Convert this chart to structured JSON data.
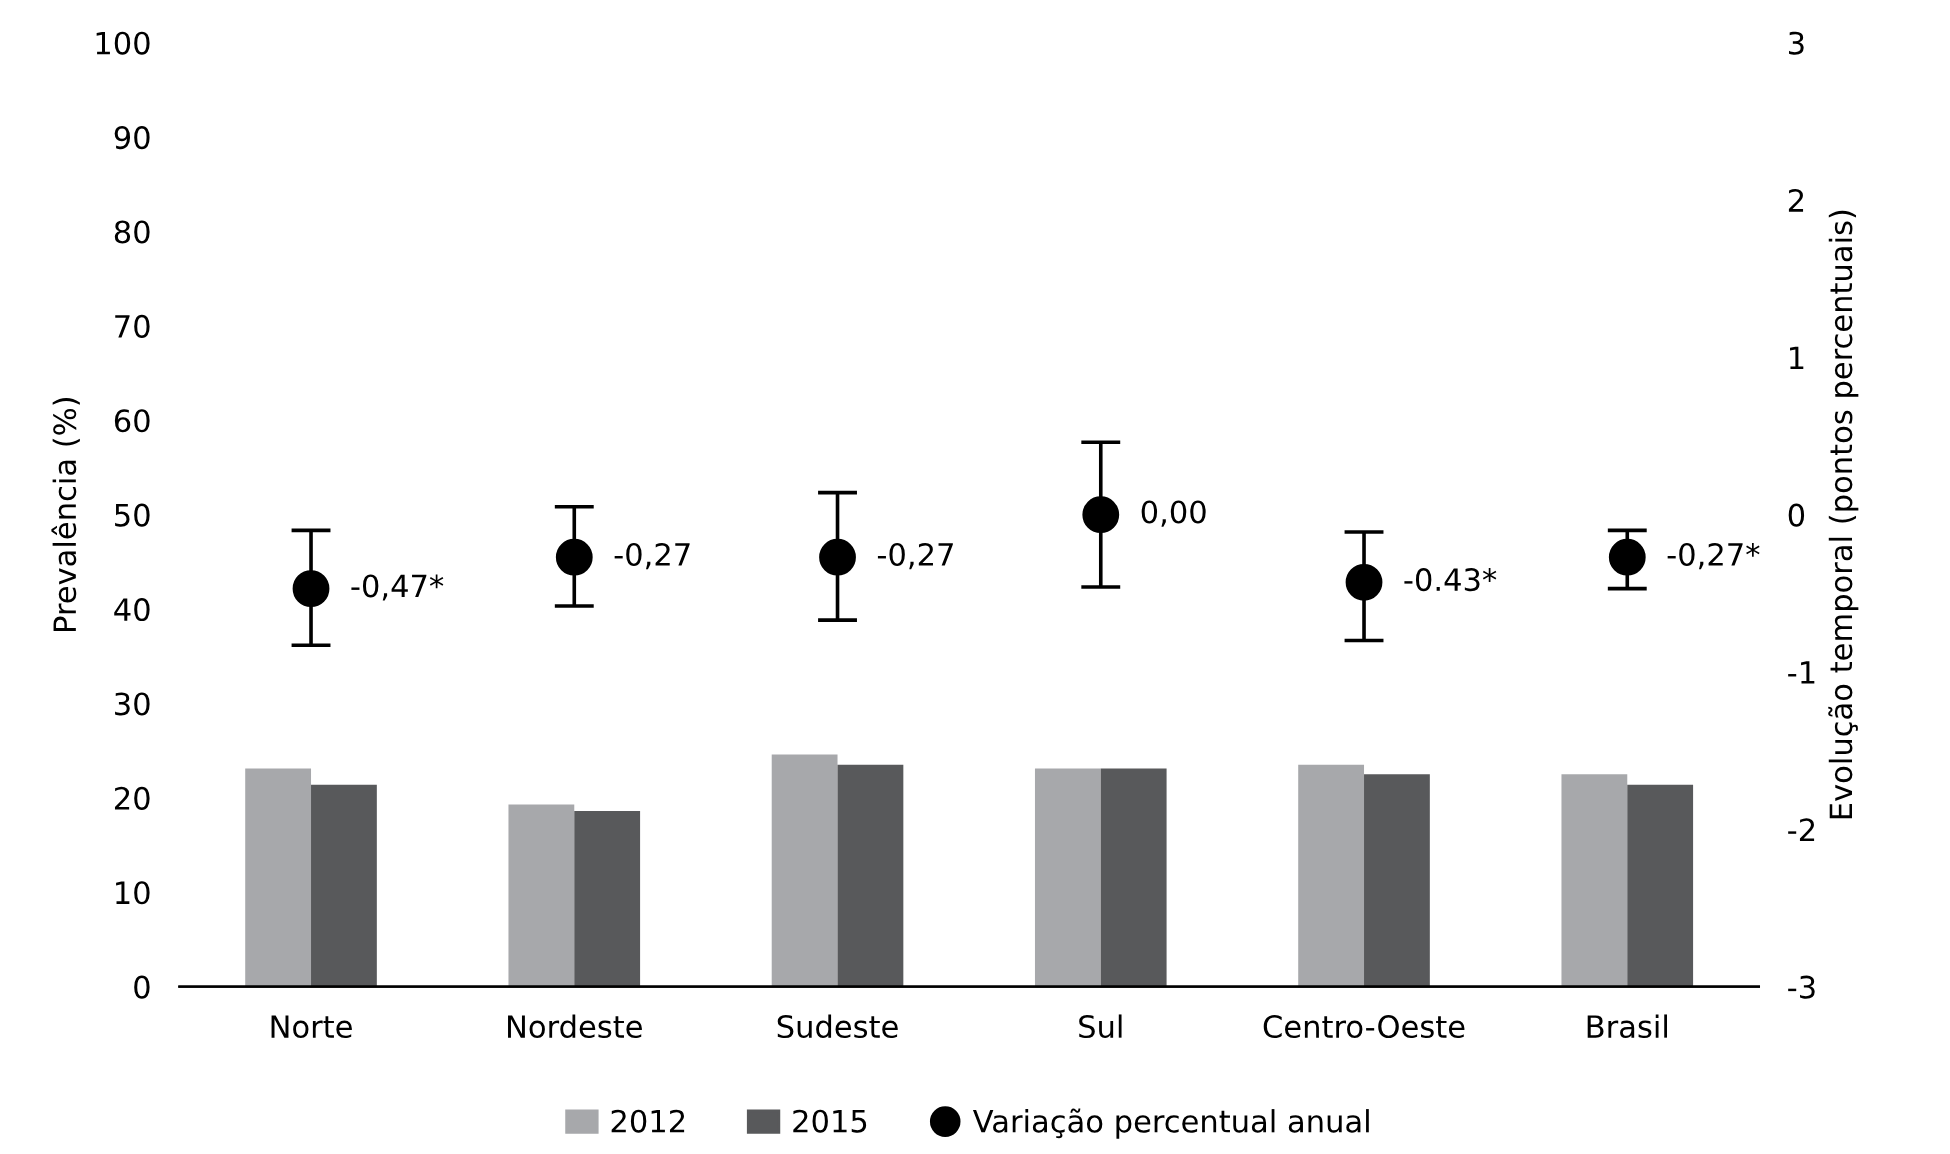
{
  "chart_data": {
    "type": "bar",
    "ylabel": "Prevalência (%)",
    "y2label": "Evolução temporal (pontos percentuais)",
    "categories": [
      "Norte",
      "Nordeste",
      "Sudeste",
      "Sul",
      "Centro-Oeste",
      "Brasil"
    ],
    "series": [
      {
        "name": "2012",
        "color": "#a7a8ab",
        "values": [
          23.1,
          19.3,
          24.6,
          23.1,
          23.5,
          22.5
        ]
      },
      {
        "name": "2015",
        "color": "#58595b",
        "values": [
          21.4,
          18.6,
          23.5,
          23.1,
          22.5,
          21.4
        ]
      },
      {
        "name": "Variação percentual anual",
        "type": "scatter",
        "axis": "y2",
        "color": "#000000",
        "marker": "circle",
        "values": [
          -0.47,
          -0.27,
          -0.27,
          0.0,
          -0.43,
          -0.27
        ],
        "errors": [
          [
            -0.83,
            -0.1
          ],
          [
            -0.58,
            0.05
          ],
          [
            -0.67,
            0.14
          ],
          [
            -0.46,
            0.46
          ],
          [
            -0.8,
            -0.11
          ],
          [
            -0.47,
            -0.1
          ]
        ],
        "value_labels": [
          "-0,47*",
          "-0,27",
          "-0,27",
          "0,00",
          "-0.43*",
          "-0,27*"
        ]
      }
    ],
    "ylim": [
      0,
      100
    ],
    "yticks": [
      0,
      10,
      20,
      30,
      40,
      50,
      60,
      70,
      80,
      90,
      100
    ],
    "y2lim": [
      -3,
      3
    ],
    "y2ticks": [
      -3,
      -2,
      -1,
      0,
      1,
      2,
      3
    ],
    "grid": false,
    "legend": "bottom"
  }
}
